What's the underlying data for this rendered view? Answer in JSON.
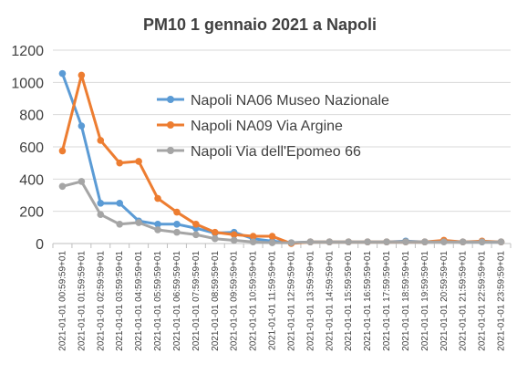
{
  "chart_data": {
    "type": "line",
    "title": "PM10 1 gennaio 2021 a Napoli",
    "xlabel": "",
    "ylabel": "",
    "ylim": [
      0,
      1200
    ],
    "yticks": [
      0,
      200,
      400,
      600,
      800,
      1000,
      1200
    ],
    "grid": "horizontal",
    "legend_position": "center-right",
    "categories": [
      "2021-01-01 00:59:59+01",
      "2021-01-01 01:59:59+01",
      "2021-01-01 02:59:59+01",
      "2021-01-01 03:59:59+01",
      "2021-01-01 04:59:59+01",
      "2021-01-01 05:59:59+01",
      "2021-01-01 06:59:59+01",
      "2021-01-01 07:59:59+01",
      "2021-01-01 08:59:59+01",
      "2021-01-01 09:59:59+01",
      "2021-01-01 10:59:59+01",
      "2021-01-01 11:59:59+01",
      "2021-01-01 12:59:59+01",
      "2021-01-01 13:59:59+01",
      "2021-01-01 14:59:59+01",
      "2021-01-01 15:59:59+01",
      "2021-01-01 16:59:59+01",
      "2021-01-01 17:59:59+01",
      "2021-01-01 18:59:59+01",
      "2021-01-01 19:59:59+01",
      "2021-01-01 20:59:59+01",
      "2021-01-01 21:59:59+01",
      "2021-01-01 22:59:59+01",
      "2021-01-01 23:59:59+01"
    ],
    "series": [
      {
        "name": "Napoli NA06 Museo Nazionale",
        "color": "#5b9bd5",
        "values": [
          1055,
          730,
          250,
          250,
          140,
          120,
          120,
          95,
          65,
          70,
          30,
          15,
          5,
          10,
          10,
          10,
          10,
          10,
          15,
          10,
          15,
          10,
          10,
          10
        ]
      },
      {
        "name": "Napoli NA09 Via Argine",
        "color": "#ed7d31",
        "values": [
          575,
          1045,
          640,
          500,
          510,
          280,
          195,
          120,
          70,
          55,
          45,
          45,
          0,
          10,
          10,
          10,
          10,
          10,
          10,
          10,
          20,
          10,
          15,
          10
        ]
      },
      {
        "name": "Napoli Via dell'Epomeo 66",
        "color": "#a5a5a5",
        "values": [
          355,
          385,
          180,
          120,
          130,
          85,
          70,
          55,
          30,
          20,
          10,
          5,
          5,
          10,
          10,
          10,
          10,
          10,
          10,
          10,
          10,
          10,
          10,
          10
        ]
      }
    ]
  },
  "colors": {
    "grid": "#d9d9d9",
    "axis": "#bfbfbf",
    "text": "#404040"
  }
}
